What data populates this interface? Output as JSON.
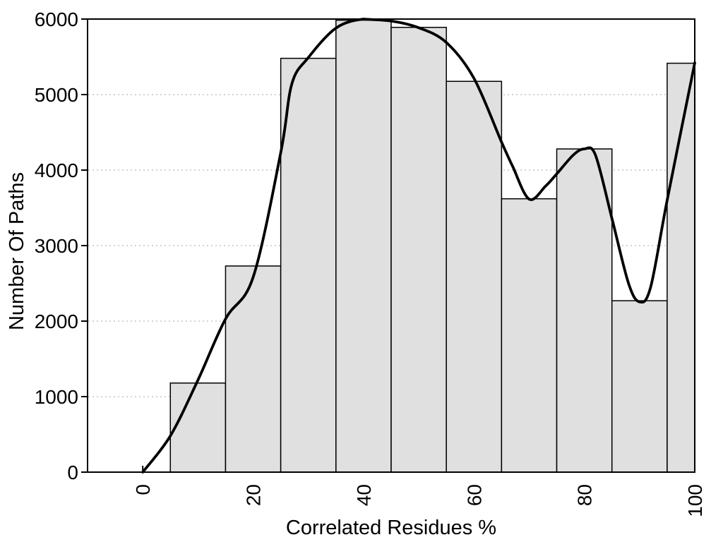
{
  "chart_data": {
    "type": "bar",
    "subtype": "histogram-with-smooth-curve",
    "title": "",
    "xlabel": "Correlated Residues %",
    "ylabel": "Number Of Paths",
    "xlim": [
      -10,
      100
    ],
    "ylim": [
      0,
      6000
    ],
    "grid": {
      "horizontal": true,
      "vertical": false,
      "style": "dotted"
    },
    "legend_position": "none",
    "x_tick_labels": [
      "0",
      "20",
      "40",
      "60",
      "80",
      "100"
    ],
    "x_tick_values": [
      0,
      20,
      40,
      60,
      80,
      100
    ],
    "y_tick_labels": [
      "0",
      "1000",
      "2000",
      "3000",
      "4000",
      "5000",
      "6000"
    ],
    "y_tick_values": [
      0,
      1000,
      2000,
      3000,
      4000,
      5000,
      6000
    ],
    "bars": [
      {
        "x0": 5,
        "x1": 15,
        "value": 1180
      },
      {
        "x0": 15,
        "x1": 25,
        "value": 2730
      },
      {
        "x0": 25,
        "x1": 35,
        "value": 5480
      },
      {
        "x0": 35,
        "x1": 45,
        "value": 5985
      },
      {
        "x0": 45,
        "x1": 55,
        "value": 5890
      },
      {
        "x0": 55,
        "x1": 65,
        "value": 5175
      },
      {
        "x0": 65,
        "x1": 75,
        "value": 3620
      },
      {
        "x0": 75,
        "x1": 85,
        "value": 4280
      },
      {
        "x0": 85,
        "x1": 95,
        "value": 2270
      },
      {
        "x0": 95,
        "x1": 100,
        "value": 5415
      }
    ],
    "curve_points": [
      [
        0,
        0
      ],
      [
        5,
        480
      ],
      [
        10,
        1220
      ],
      [
        15,
        2030
      ],
      [
        20,
        2580
      ],
      [
        25,
        4230
      ],
      [
        27,
        5140
      ],
      [
        30,
        5490
      ],
      [
        35,
        5880
      ],
      [
        40,
        6000
      ],
      [
        45,
        5975
      ],
      [
        50,
        5885
      ],
      [
        55,
        5690
      ],
      [
        60,
        5215
      ],
      [
        65,
        4370
      ],
      [
        67,
        4050
      ],
      [
        70,
        3615
      ],
      [
        73,
        3790
      ],
      [
        75,
        3950
      ],
      [
        78,
        4200
      ],
      [
        80,
        4280
      ],
      [
        82,
        4200
      ],
      [
        85,
        3360
      ],
      [
        88,
        2500
      ],
      [
        90,
        2255
      ],
      [
        92,
        2450
      ],
      [
        95,
        3600
      ],
      [
        100,
        5420
      ]
    ],
    "colors": {
      "background": "#ffffff",
      "bar_fill": "#e0e0e0",
      "bar_stroke": "#000000",
      "curve": "#000000",
      "grid": "#c6c6c6",
      "axis": "#000000",
      "text": "#000000"
    }
  }
}
